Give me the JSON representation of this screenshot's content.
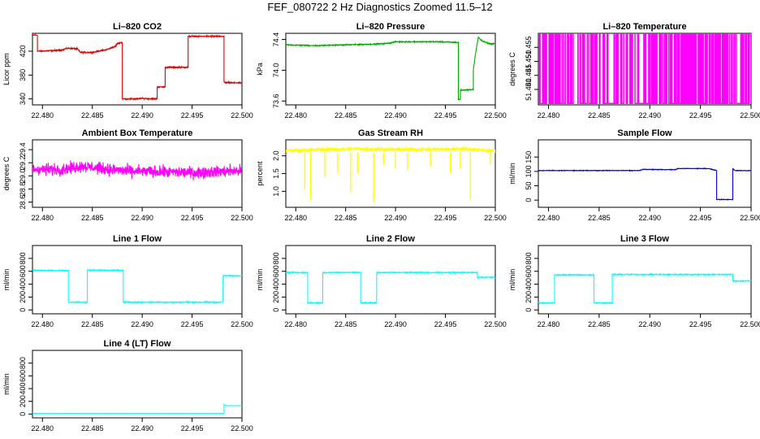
{
  "figure_title": "FEF_080722  2 Hz Diagnostics Zoomed 11.5–12",
  "chart_data": [
    {
      "type": "line",
      "title": "Li–820 CO2",
      "ylabel": "Licor ppm",
      "color": "#dd0000",
      "xlim": [
        22.479,
        22.5
      ],
      "ylim": [
        330,
        450
      ],
      "x_ticks": [
        "22.480",
        "22.485",
        "22.490",
        "22.495",
        "22.500"
      ],
      "y_ticks": [
        {
          "v": 340,
          "label": "340"
        },
        {
          "v": 380,
          "label": "380"
        },
        {
          "v": 420,
          "label": "420"
        }
      ],
      "noise": 1.5,
      "series": [
        {
          "points": [
            [
              22.479,
              447
            ],
            [
              22.4795,
              447
            ],
            [
              22.4795,
              420
            ],
            [
              22.481,
              421
            ],
            [
              22.482,
              422
            ],
            [
              22.4825,
              425
            ],
            [
              22.4835,
              424
            ],
            [
              22.4838,
              418
            ],
            [
              22.485,
              418
            ],
            [
              22.4865,
              423
            ],
            [
              22.4873,
              428
            ],
            [
              22.4875,
              433
            ],
            [
              22.488,
              435
            ],
            [
              22.488,
              340
            ],
            [
              22.4898,
              340
            ],
            [
              22.4898,
              341
            ],
            [
              22.4915,
              340
            ],
            [
              22.4915,
              360
            ],
            [
              22.4923,
              360
            ],
            [
              22.4923,
              393
            ],
            [
              22.4946,
              393
            ],
            [
              22.4946,
              445
            ],
            [
              22.4982,
              445
            ],
            [
              22.4982,
              368
            ],
            [
              22.4984,
              367
            ],
            [
              22.5,
              367
            ]
          ]
        }
      ]
    },
    {
      "type": "line",
      "title": "Li–820 Pressure",
      "ylabel": "kPa",
      "color": "#00aa00",
      "xlim": [
        22.479,
        22.5
      ],
      "ylim": [
        73.55,
        74.48
      ],
      "x_ticks": [
        "22.480",
        "22.485",
        "22.490",
        "22.495",
        "22.500"
      ],
      "y_ticks": [
        {
          "v": 73.6,
          "label": "73.6"
        },
        {
          "v": 74.0,
          "label": "74.0"
        },
        {
          "v": 74.4,
          "label": "74.4"
        }
      ],
      "noise": 0.01,
      "series": [
        {
          "points": [
            [
              22.479,
              74.33
            ],
            [
              22.482,
              74.32
            ],
            [
              22.485,
              74.33
            ],
            [
              22.488,
              74.34
            ],
            [
              22.4893,
              74.35
            ],
            [
              22.49,
              74.37
            ],
            [
              22.4945,
              74.37
            ],
            [
              22.4963,
              74.36
            ],
            [
              22.4963,
              73.62
            ],
            [
              22.4965,
              73.62
            ],
            [
              22.4965,
              73.74
            ],
            [
              22.4978,
              73.75
            ],
            [
              22.4978,
              74.0
            ],
            [
              22.498,
              74.2
            ],
            [
              22.4983,
              74.43
            ],
            [
              22.4987,
              74.38
            ],
            [
              22.4995,
              74.34
            ],
            [
              22.5,
              74.35
            ]
          ]
        }
      ]
    },
    {
      "type": "line",
      "title": "Li–820 Temperature",
      "ylabel": "degrees C",
      "color": "#ff00ff",
      "xlim": [
        22.479,
        22.5
      ],
      "ylim": [
        51.4345,
        51.46
      ],
      "x_ticks": [
        "22.480",
        "22.485",
        "22.490",
        "22.495",
        "22.500"
      ],
      "y_ticks": [
        {
          "v": 51.44,
          "label": "51.440"
        },
        {
          "v": 51.445,
          "label": "51.445"
        },
        {
          "v": 51.45,
          "label": "51.450"
        },
        {
          "v": 51.455,
          "label": "51.455"
        }
      ],
      "mode": "square",
      "low": 51.435,
      "high": 51.46,
      "density": 0.28,
      "series": [
        {
          "points": [
            [
              22.479,
              51.435
            ],
            [
              22.5,
              51.435
            ]
          ]
        }
      ]
    },
    {
      "type": "line",
      "title": "Ambient Box Temperature",
      "ylabel": "degrees C",
      "color": "#ff00ff",
      "xlim": [
        22.479,
        22.5
      ],
      "ylim": [
        28.52,
        29.55
      ],
      "x_ticks": [
        "22.480",
        "22.485",
        "22.490",
        "22.495",
        "22.500"
      ],
      "y_ticks": [
        {
          "v": 28.6,
          "label": "28.6"
        },
        {
          "v": 28.8,
          "label": "28.8"
        },
        {
          "v": 29.0,
          "label": "29.0"
        },
        {
          "v": 29.2,
          "label": "29.2"
        },
        {
          "v": 29.4,
          "label": "29.4"
        }
      ],
      "noise": 0.13,
      "series": [
        {
          "points": [
            [
              22.479,
              29.1
            ],
            [
              22.482,
              29.1
            ],
            [
              22.484,
              29.15
            ],
            [
              22.4865,
              29.1
            ],
            [
              22.489,
              29.07
            ],
            [
              22.495,
              29.05
            ],
            [
              22.5,
              29.08
            ]
          ]
        }
      ]
    },
    {
      "type": "line",
      "title": "Gas Stream RH",
      "ylabel": "percent",
      "color": "#ffff00",
      "xlim": [
        22.479,
        22.5
      ],
      "ylim": [
        0.55,
        2.45
      ],
      "x_ticks": [
        "22.480",
        "22.485",
        "22.490",
        "22.495",
        "22.500"
      ],
      "y_ticks": [
        {
          "v": 1.0,
          "label": "1.0"
        },
        {
          "v": 1.5,
          "label": "1.5"
        },
        {
          "v": 2.0,
          "label": "2.0"
        }
      ],
      "noise": 0.08,
      "spikes": [
        [
          22.4809,
          1.05
        ],
        [
          22.4815,
          0.75
        ],
        [
          22.4829,
          1.4
        ],
        [
          22.4842,
          1.5
        ],
        [
          22.4855,
          0.97
        ],
        [
          22.4862,
          1.5
        ],
        [
          22.4878,
          0.7
        ],
        [
          22.4888,
          1.75
        ],
        [
          22.49,
          1.65
        ],
        [
          22.4912,
          1.6
        ],
        [
          22.4935,
          1.7
        ],
        [
          22.4955,
          1.5
        ],
        [
          22.4965,
          1.65
        ],
        [
          22.4975,
          0.75
        ],
        [
          22.4995,
          1.75
        ]
      ],
      "series": [
        {
          "points": [
            [
              22.479,
              2.15
            ],
            [
              22.482,
              2.17
            ],
            [
              22.486,
              2.2
            ],
            [
              22.49,
              2.18
            ],
            [
              22.494,
              2.18
            ],
            [
              22.497,
              2.2
            ],
            [
              22.5,
              2.14
            ]
          ]
        }
      ]
    },
    {
      "type": "line",
      "title": "Sample Flow",
      "ylabel": "ml/min",
      "color": "#0000cc",
      "xlim": [
        22.479,
        22.5
      ],
      "ylim": [
        -25,
        210
      ],
      "x_ticks": [
        "22.480",
        "22.485",
        "22.490",
        "22.495",
        "22.500"
      ],
      "y_ticks": [
        {
          "v": 0,
          "label": "0"
        },
        {
          "v": 50,
          "label": "50"
        },
        {
          "v": 100,
          "label": "100"
        },
        {
          "v": 150,
          "label": "150"
        }
      ],
      "noise": 1.5,
      "series": [
        {
          "points": [
            [
              22.479,
              103
            ],
            [
              22.489,
              103
            ],
            [
              22.4893,
              107
            ],
            [
              22.4925,
              106
            ],
            [
              22.4928,
              110
            ],
            [
              22.4958,
              110
            ],
            [
              22.4966,
              103
            ],
            [
              22.4966,
              2
            ],
            [
              22.4982,
              2
            ],
            [
              22.4982,
              110
            ],
            [
              22.4984,
              103
            ],
            [
              22.5,
              103
            ]
          ]
        }
      ]
    },
    {
      "type": "line",
      "title": "Line 1 Flow",
      "ylabel": "ml/min",
      "color": "#00ffff",
      "xlim": [
        22.479,
        22.5
      ],
      "ylim": [
        -60,
        1000
      ],
      "x_ticks": [
        "22.480",
        "22.485",
        "22.490",
        "22.495",
        "22.500"
      ],
      "y_ticks": [
        {
          "v": 0,
          "label": "0"
        },
        {
          "v": 200,
          "label": "200"
        },
        {
          "v": 400,
          "label": "400"
        },
        {
          "v": 600,
          "label": "600"
        },
        {
          "v": 800,
          "label": "800"
        }
      ],
      "noise": 12,
      "series": [
        {
          "points": [
            [
              22.479,
              615
            ],
            [
              22.4826,
              610
            ],
            [
              22.4826,
              120
            ],
            [
              22.4845,
              120
            ],
            [
              22.4845,
              620
            ],
            [
              22.4881,
              615
            ],
            [
              22.4881,
              120
            ],
            [
              22.4981,
              120
            ],
            [
              22.4981,
              530
            ],
            [
              22.5,
              530
            ]
          ]
        }
      ]
    },
    {
      "type": "line",
      "title": "Line 2 Flow",
      "ylabel": "ml/min",
      "color": "#00ffff",
      "xlim": [
        22.479,
        22.5
      ],
      "ylim": [
        -60,
        1000
      ],
      "x_ticks": [
        "22.480",
        "22.485",
        "22.490",
        "22.495",
        "22.500"
      ],
      "y_ticks": [
        {
          "v": 0,
          "label": "0"
        },
        {
          "v": 200,
          "label": "200"
        },
        {
          "v": 400,
          "label": "400"
        },
        {
          "v": 600,
          "label": "600"
        },
        {
          "v": 800,
          "label": "800"
        }
      ],
      "noise": 12,
      "series": [
        {
          "points": [
            [
              22.479,
              580
            ],
            [
              22.4812,
              580
            ],
            [
              22.4812,
              110
            ],
            [
              22.4827,
              110
            ],
            [
              22.4827,
              580
            ],
            [
              22.4865,
              580
            ],
            [
              22.4865,
              110
            ],
            [
              22.4881,
              110
            ],
            [
              22.4881,
              580
            ],
            [
              22.4982,
              580
            ],
            [
              22.4982,
              505
            ],
            [
              22.5,
              505
            ]
          ]
        }
      ]
    },
    {
      "type": "line",
      "title": "Line 3 Flow",
      "ylabel": "ml/min",
      "color": "#00ffff",
      "xlim": [
        22.479,
        22.5
      ],
      "ylim": [
        -60,
        1000
      ],
      "x_ticks": [
        "22.480",
        "22.485",
        "22.490",
        "22.495",
        "22.500"
      ],
      "y_ticks": [
        {
          "v": 0,
          "label": "0"
        },
        {
          "v": 200,
          "label": "200"
        },
        {
          "v": 400,
          "label": "400"
        },
        {
          "v": 600,
          "label": "600"
        },
        {
          "v": 800,
          "label": "800"
        }
      ],
      "noise": 12,
      "series": [
        {
          "points": [
            [
              22.479,
              110
            ],
            [
              22.4806,
              110
            ],
            [
              22.4806,
              545
            ],
            [
              22.4845,
              545
            ],
            [
              22.4845,
              110
            ],
            [
              22.4863,
              110
            ],
            [
              22.4863,
              550
            ],
            [
              22.4982,
              550
            ],
            [
              22.4982,
              450
            ],
            [
              22.5,
              450
            ]
          ]
        }
      ]
    },
    {
      "type": "line",
      "title": "Line 4 (LT) Flow",
      "ylabel": "ml/min",
      "color": "#00ffff",
      "xlim": [
        22.479,
        22.5
      ],
      "ylim": [
        -60,
        1000
      ],
      "x_ticks": [
        "22.480",
        "22.485",
        "22.490",
        "22.495",
        "22.500"
      ],
      "y_ticks": [
        {
          "v": 0,
          "label": "0"
        },
        {
          "v": 200,
          "label": "200"
        },
        {
          "v": 400,
          "label": "400"
        },
        {
          "v": 600,
          "label": "600"
        },
        {
          "v": 800,
          "label": "800"
        }
      ],
      "noise": 1,
      "series": [
        {
          "points": [
            [
              22.479,
              8
            ],
            [
              22.4982,
              8
            ],
            [
              22.4982,
              150
            ],
            [
              22.4985,
              130
            ],
            [
              22.5,
              130
            ]
          ]
        }
      ]
    }
  ]
}
